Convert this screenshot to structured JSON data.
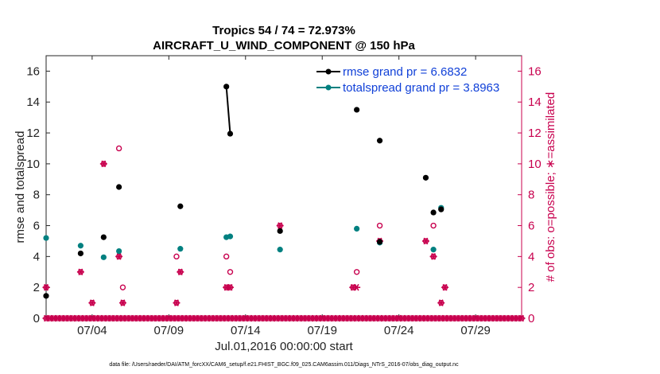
{
  "chart_data": {
    "type": "scatter",
    "title": "Tropics 54 / 74 = 72.973%",
    "subtitle": "AIRCRAFT_U_WIND_COMPONENT @ 150 hPa",
    "xlabel": "Jul.01,2016 00:00:00 start",
    "ylabel": "rmse and totalspread",
    "ylabel_right": "# of obs: o=possible; ∗=assimilated",
    "xlim": [
      0.0,
      31.0
    ],
    "ylim": [
      0,
      17
    ],
    "ylim_right": [
      0,
      17
    ],
    "x_ticks": [
      3.0,
      8.0,
      13.0,
      18.0,
      23.0,
      28.0
    ],
    "x_tick_labels": [
      "07/04",
      "07/09",
      "07/14",
      "07/19",
      "07/24",
      "07/29"
    ],
    "y_ticks": [
      0,
      2,
      4,
      6,
      8,
      10,
      12,
      14,
      16
    ],
    "y_ticks_right": [
      0,
      2,
      4,
      6,
      8,
      10,
      12,
      14,
      16
    ],
    "footnote": "data file: /Users/raeder/DAI/ATM_forcXX/CAM6_setup/f.e21.FHIST_BGC.f09_025.CAM6assim.011/Diags_NTrS_2016-07/obs_diag_output.nc",
    "legend_position": "top-right",
    "series": [
      {
        "name": "rmse grand pr = 6.6832",
        "color": "#000000",
        "points": [
          [
            0.0,
            1.45
          ],
          [
            2.25,
            4.2
          ],
          [
            3.75,
            5.25
          ],
          [
            4.75,
            8.5
          ],
          [
            8.75,
            7.25
          ],
          [
            11.75,
            15.0
          ],
          [
            12.0,
            11.95
          ],
          [
            15.25,
            5.65
          ],
          [
            20.25,
            13.5
          ],
          [
            21.75,
            11.5
          ],
          [
            21.75,
            4.95
          ],
          [
            24.75,
            9.1
          ],
          [
            25.25,
            6.85
          ],
          [
            25.75,
            7.05
          ]
        ],
        "connected": [
          [
            11.75,
            15.0
          ],
          [
            12.0,
            11.95
          ]
        ]
      },
      {
        "name": "totalspread grand pr = 3.8963",
        "color": "#008080",
        "points": [
          [
            0.0,
            5.2
          ],
          [
            2.25,
            4.7
          ],
          [
            3.75,
            3.95
          ],
          [
            4.75,
            4.35
          ],
          [
            8.75,
            4.5
          ],
          [
            11.75,
            5.25
          ],
          [
            12.0,
            5.3
          ],
          [
            15.25,
            4.45
          ],
          [
            20.25,
            5.8
          ],
          [
            21.75,
            4.9
          ],
          [
            25.25,
            4.45
          ],
          [
            25.75,
            7.15
          ]
        ],
        "connected": [
          [
            11.75,
            5.25
          ],
          [
            12.0,
            5.3
          ]
        ]
      },
      {
        "name": "possible obs count",
        "color": "#c8004e",
        "marker": "o",
        "points": [
          [
            0.0,
            2
          ],
          [
            2.25,
            3
          ],
          [
            3.0,
            1
          ],
          [
            3.75,
            10
          ],
          [
            4.75,
            11
          ],
          [
            4.75,
            4
          ],
          [
            5.0,
            2
          ],
          [
            5.0,
            1
          ],
          [
            8.5,
            4
          ],
          [
            8.5,
            1
          ],
          [
            8.75,
            3
          ],
          [
            11.75,
            4
          ],
          [
            11.75,
            2
          ],
          [
            12.0,
            3
          ],
          [
            12.0,
            2
          ],
          [
            15.25,
            6
          ],
          [
            20.0,
            2
          ],
          [
            20.25,
            3
          ],
          [
            21.75,
            6
          ],
          [
            21.75,
            5
          ],
          [
            24.75,
            5
          ],
          [
            25.25,
            6
          ],
          [
            25.25,
            4
          ],
          [
            25.75,
            1
          ],
          [
            26.0,
            2
          ]
        ]
      },
      {
        "name": "assimilated obs count",
        "color": "#c8004e",
        "marker": "*",
        "points": [
          [
            0.0,
            2
          ],
          [
            2.25,
            3
          ],
          [
            3.0,
            1
          ],
          [
            3.75,
            10
          ],
          [
            4.75,
            4
          ],
          [
            5.0,
            1
          ],
          [
            8.5,
            1
          ],
          [
            8.75,
            3
          ],
          [
            11.75,
            2
          ],
          [
            12.0,
            2
          ],
          [
            15.25,
            6
          ],
          [
            20.0,
            2
          ],
          [
            20.25,
            2
          ],
          [
            21.75,
            5
          ],
          [
            24.75,
            5
          ],
          [
            25.25,
            4
          ],
          [
            25.75,
            1
          ],
          [
            26.0,
            2
          ]
        ]
      }
    ],
    "zero_count_times": {
      "start": 0.0,
      "end": 31.0,
      "step": 0.25
    }
  }
}
